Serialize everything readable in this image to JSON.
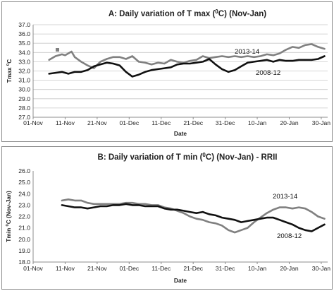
{
  "chart_data": [
    {
      "type": "line",
      "title": "A: Daily variation of T max  (0C) (Nov-Jan)",
      "title_parts": {
        "before": "A: Daily variation of T max  (",
        "sup": "0",
        "after": "C) (Nov-Jan)"
      },
      "xlabel": "Date",
      "ylabel": "Tmax 0C",
      "ylabel_parts": {
        "before": "Tmax ",
        "sup": "0",
        "after": "C"
      },
      "ylim": [
        27.0,
        37.0
      ],
      "y_ticks": [
        "27.0",
        "28.0",
        "29.0",
        "30.0",
        "31.0",
        "32.0",
        "33.0",
        "34.0",
        "35.0",
        "36.0",
        "37.0"
      ],
      "x_ticks": [
        {
          "label": "01-Nov",
          "day": 0
        },
        {
          "label": "11-Nov",
          "day": 10
        },
        {
          "label": "21-Nov",
          "day": 20
        },
        {
          "label": "01-Dec",
          "day": 30
        },
        {
          "label": "11-Dec",
          "day": 40
        },
        {
          "label": "21-Dec",
          "day": 50
        },
        {
          "label": "31-Dec",
          "day": 60
        },
        {
          "label": "10-Jan",
          "day": 70
        },
        {
          "label": "20-Jan",
          "day": 80
        },
        {
          "label": "30-Jan",
          "day": 90
        }
      ],
      "xlim": [
        0,
        92
      ],
      "grid": true,
      "series": [
        {
          "name": "2013-14",
          "color": "#808080",
          "x": [
            5,
            7,
            9,
            10,
            12,
            13,
            15,
            17,
            19,
            21,
            23,
            25,
            27,
            29,
            31,
            33,
            35,
            37,
            39,
            41,
            43,
            45,
            47,
            49,
            51,
            53,
            55,
            57,
            59,
            61,
            63,
            65,
            67,
            69,
            71,
            73,
            75,
            77,
            79,
            81,
            83,
            85,
            87,
            89,
            91
          ],
          "y": [
            33.2,
            33.6,
            33.8,
            33.7,
            34.1,
            33.5,
            33.0,
            32.6,
            32.3,
            33.0,
            33.3,
            33.5,
            33.5,
            33.3,
            33.6,
            33.0,
            32.9,
            32.7,
            32.9,
            32.8,
            33.2,
            33.0,
            32.9,
            33.1,
            33.2,
            33.6,
            33.4,
            33.5,
            33.6,
            33.5,
            33.6,
            33.5,
            33.6,
            33.5,
            33.6,
            33.8,
            33.7,
            33.9,
            34.3,
            34.6,
            34.5,
            34.8,
            34.9,
            34.6,
            34.4
          ]
        },
        {
          "name": "2008-12",
          "color": "#111111",
          "x": [
            5,
            7,
            9,
            11,
            13,
            15,
            17,
            19,
            21,
            23,
            25,
            27,
            29,
            31,
            33,
            35,
            37,
            39,
            41,
            43,
            45,
            47,
            49,
            51,
            53,
            55,
            57,
            59,
            61,
            63,
            65,
            67,
            69,
            71,
            73,
            75,
            77,
            79,
            81,
            83,
            85,
            87,
            89,
            91
          ],
          "y": [
            31.7,
            31.8,
            31.9,
            31.7,
            31.9,
            31.9,
            32.1,
            32.5,
            32.7,
            32.9,
            32.8,
            32.6,
            31.9,
            31.4,
            31.6,
            31.9,
            32.1,
            32.2,
            32.3,
            32.4,
            32.7,
            32.8,
            32.8,
            32.9,
            33.0,
            33.3,
            32.7,
            32.2,
            31.9,
            32.1,
            32.5,
            32.9,
            33.0,
            33.1,
            33.2,
            33.0,
            33.2,
            33.1,
            33.1,
            33.2,
            33.2,
            33.2,
            33.3,
            33.6
          ]
        }
      ]
    },
    {
      "type": "line",
      "title": "B: Daily variation of T min (0C)  (Nov-Jan) - RRII",
      "title_parts": {
        "before": "B: Daily variation of T min (",
        "sup": "0",
        "after": "C)  (Nov-Jan) - RRII"
      },
      "xlabel": "Date",
      "ylabel": "Tmin 0C (Nov-Jan)",
      "ylabel_parts": {
        "before": "Tmin ",
        "sup": "0",
        "after": "C (Nov-Jan)"
      },
      "ylim": [
        18.0,
        26.0
      ],
      "y_ticks": [
        "18.0",
        "19.0",
        "20.0",
        "21.0",
        "22.0",
        "23.0",
        "24.0",
        "25.0",
        "26.0"
      ],
      "x_ticks": [
        {
          "label": "01-Nov",
          "day": 0
        },
        {
          "label": "11-Nov",
          "day": 10
        },
        {
          "label": "21-Nov",
          "day": 20
        },
        {
          "label": "01-Dec",
          "day": 30
        },
        {
          "label": "11-Dec",
          "day": 40
        },
        {
          "label": "21-Dec",
          "day": 50
        },
        {
          "label": "31-Dec",
          "day": 60
        },
        {
          "label": "10-Jan",
          "day": 70
        },
        {
          "label": "20-Jan",
          "day": 80
        },
        {
          "label": "30-Jan",
          "day": 90
        }
      ],
      "xlim": [
        0,
        92
      ],
      "grid": false,
      "series": [
        {
          "name": "2013-14",
          "color": "#808080",
          "x": [
            9,
            11,
            13,
            15,
            17,
            19,
            21,
            23,
            25,
            27,
            29,
            31,
            33,
            35,
            37,
            39,
            41,
            43,
            45,
            47,
            49,
            51,
            53,
            55,
            57,
            59,
            61,
            63,
            65,
            67,
            69,
            71,
            73,
            75,
            77,
            79,
            81,
            83,
            85,
            87,
            89,
            91
          ],
          "y": [
            23.4,
            23.5,
            23.4,
            23.4,
            23.2,
            23.1,
            23.1,
            23.1,
            23.1,
            23.1,
            23.2,
            23.2,
            23.1,
            23.1,
            23.0,
            23.0,
            22.8,
            22.7,
            22.5,
            22.3,
            22.0,
            21.8,
            21.7,
            21.5,
            21.4,
            21.2,
            20.8,
            20.6,
            20.8,
            21.0,
            21.5,
            21.9,
            22.3,
            22.6,
            22.8,
            22.8,
            22.7,
            22.8,
            22.7,
            22.4,
            22.0,
            21.8
          ]
        },
        {
          "name": "2008-12",
          "color": "#111111",
          "x": [
            9,
            11,
            13,
            15,
            17,
            19,
            21,
            23,
            25,
            27,
            29,
            31,
            33,
            35,
            37,
            39,
            41,
            43,
            45,
            47,
            49,
            51,
            53,
            55,
            57,
            59,
            61,
            63,
            65,
            67,
            69,
            71,
            73,
            75,
            77,
            79,
            81,
            83,
            85,
            87,
            89,
            91
          ],
          "y": [
            23.0,
            22.9,
            22.8,
            22.8,
            22.7,
            22.8,
            22.9,
            22.9,
            23.0,
            23.0,
            23.1,
            23.0,
            23.0,
            22.9,
            22.9,
            22.9,
            22.7,
            22.6,
            22.6,
            22.5,
            22.4,
            22.3,
            22.4,
            22.2,
            22.1,
            21.9,
            21.8,
            21.7,
            21.5,
            21.6,
            21.7,
            21.8,
            21.9,
            21.9,
            21.7,
            21.5,
            21.3,
            21.0,
            20.8,
            20.7,
            21.0,
            21.3
          ]
        }
      ]
    }
  ]
}
